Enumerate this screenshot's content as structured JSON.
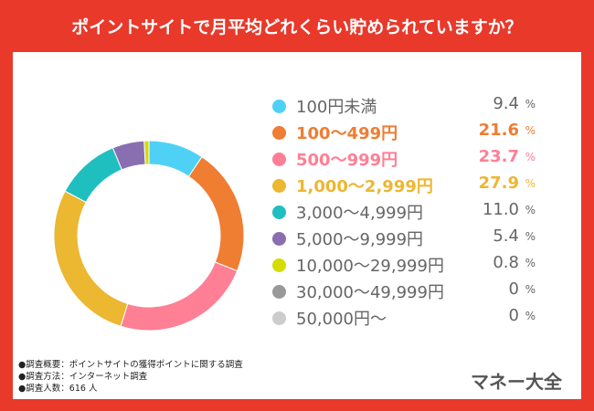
{
  "title": "ポイントサイトで月平均どれくらい貯められていますか？",
  "chart_data": {
    "type": "pie",
    "donut": true,
    "unit": "%",
    "categories": [
      "100円未満",
      "100〜499円",
      "500〜999円",
      "1,000〜2,999円",
      "3,000〜4,999円",
      "5,000〜9,999円",
      "10,000〜29,999円",
      "30,000〜49,999円",
      "50,000円〜"
    ],
    "values": [
      9.4,
      21.6,
      23.7,
      27.9,
      11.0,
      5.4,
      0.8,
      0,
      0
    ],
    "value_labels": [
      "9.4",
      "21.6",
      "23.7",
      "27.9",
      "11.0",
      "5.4",
      "0.8",
      "0",
      "0"
    ],
    "colors": [
      "#4fd1f5",
      "#ef7d32",
      "#ff7f95",
      "#ecb731",
      "#1fbfbf",
      "#8a6fb0",
      "#d4dc00",
      "#999999",
      "#cccccc"
    ],
    "highlighted": [
      false,
      true,
      true,
      true,
      false,
      false,
      false,
      false,
      false
    ],
    "legend": "right"
  },
  "notes": [
    "●調査概要：ポイントサイトの獲得ポイントに関する調査",
    "●調査方法：インターネット調査",
    "●調査人数：616 人"
  ],
  "brand": "マネー大全"
}
